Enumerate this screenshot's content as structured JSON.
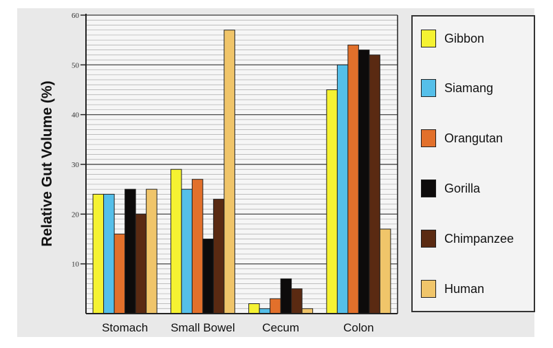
{
  "chart_data": {
    "type": "bar",
    "title": "",
    "xlabel": "",
    "ylabel": "Relative Gut Volume (%)",
    "ylim": [
      0,
      60
    ],
    "yticks": [
      10,
      20,
      30,
      40,
      50,
      60
    ],
    "grid": true,
    "legend_position": "right",
    "categories": [
      "Stomach",
      "Small Bowel",
      "Cecum",
      "Colon"
    ],
    "series": [
      {
        "name": "Gibbon",
        "color": "#f5f232",
        "values": [
          24,
          29,
          2,
          45
        ]
      },
      {
        "name": "Siamang",
        "color": "#55bfe9",
        "values": [
          24,
          25,
          1,
          50
        ]
      },
      {
        "name": "Orangutan",
        "color": "#e2702b",
        "values": [
          16,
          27,
          3,
          54
        ]
      },
      {
        "name": "Gorilla",
        "color": "#0d0b0b",
        "values": [
          25,
          15,
          7,
          53
        ]
      },
      {
        "name": "Chimpanzee",
        "color": "#5a2a12",
        "values": [
          20,
          23,
          5,
          52
        ]
      },
      {
        "name": "Human",
        "color": "#f0c56a",
        "values": [
          25,
          57,
          1,
          17
        ]
      }
    ]
  }
}
